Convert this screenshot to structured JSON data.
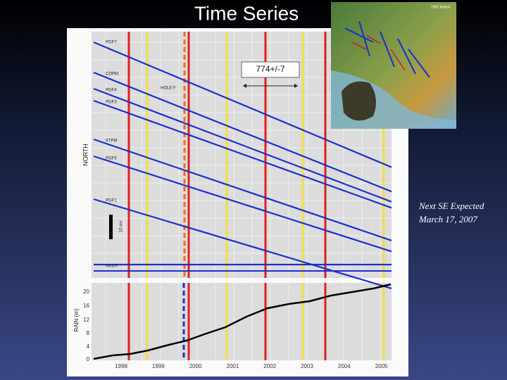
{
  "slide": {
    "title": "Time Series",
    "annotation": "774+/-7",
    "note": [
      "Next SE Expected",
      "March 17, 2007"
    ]
  },
  "figure": {
    "north_label": "NORTH",
    "scale_label": "10 cm",
    "stations": [
      "PGF7",
      "COPM",
      "PGF4",
      "PGF3",
      "KTPM",
      "PGF5",
      "PGF1",
      "MKEA"
    ],
    "hole_label": "HOLE F",
    "rain_label": "RAIN (m)",
    "rain_ticks": [
      "20",
      "16",
      "12",
      "8",
      "4",
      "0"
    ],
    "years": [
      "1998",
      "1999",
      "2000",
      "2001",
      "2002",
      "2003",
      "2004",
      "2005"
    ]
  },
  "map": {
    "legend": "2005 Motion"
  }
}
